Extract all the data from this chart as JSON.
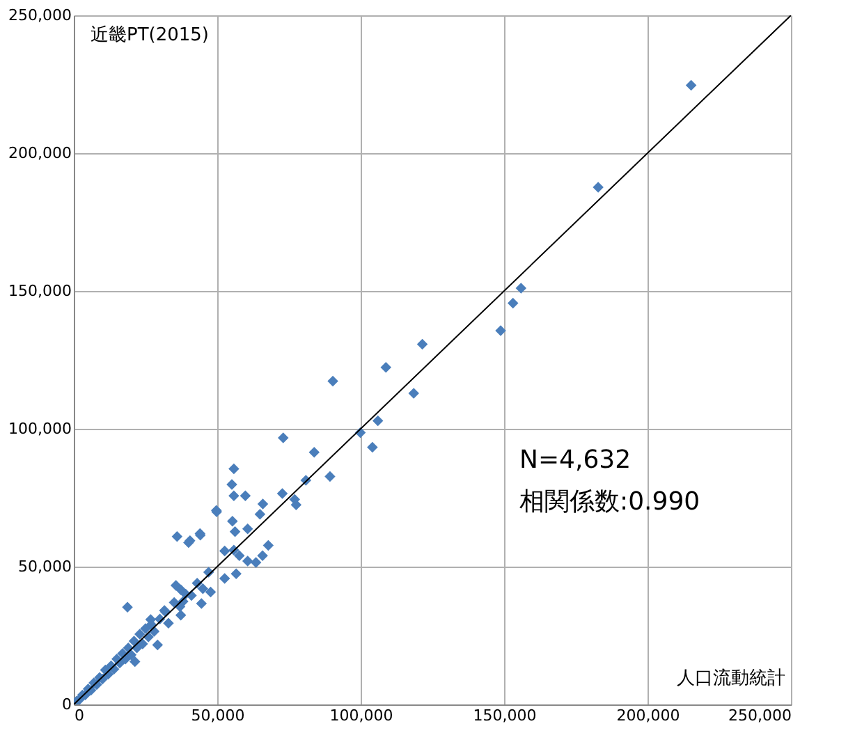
{
  "chart_data": {
    "type": "scatter",
    "xlabel": "人口流動統計",
    "ylabel": "近畿PT(2015)",
    "annotations": [
      "N=4,632",
      "相関係数:0.990"
    ],
    "xlim": [
      0,
      250000
    ],
    "ylim": [
      0,
      250000
    ],
    "xticks": [
      {
        "value": 0,
        "label": "0"
      },
      {
        "value": 50000,
        "label": "50,000"
      },
      {
        "value": 100000,
        "label": "100,000"
      },
      {
        "value": 150000,
        "label": "150,000"
      },
      {
        "value": 200000,
        "label": "200,000"
      },
      {
        "value": 250000,
        "label": "250,000"
      }
    ],
    "yticks": [
      {
        "value": 0,
        "label": "0"
      },
      {
        "value": 50000,
        "label": "50,000"
      },
      {
        "value": 100000,
        "label": "100,000"
      },
      {
        "value": 150000,
        "label": "150,000"
      },
      {
        "value": 200000,
        "label": "200,000"
      },
      {
        "value": 250000,
        "label": "250,000"
      }
    ],
    "grid": true,
    "series": [
      {
        "marker": "diamond",
        "color": "#4a7ebb",
        "x": [
          215200,
          182800,
          155900,
          153100,
          148800,
          121500,
          108800,
          118500,
          106000,
          99900,
          104100,
          90300,
          73000,
          83800,
          89300,
          55800,
          55100,
          55800,
          59800,
          49700,
          80900,
          72700,
          77000,
          77500,
          65900,
          64900,
          55300,
          60600,
          56200,
          44100,
          40500,
          67800,
          65800,
          63500,
          52600,
          55800,
          60600,
          57700,
          18700,
          36000,
          40000,
          44000,
          49800,
          35600,
          37300,
          38100,
          37300,
          44500,
          47700,
          52600,
          56600,
          29200,
          26800,
          31600,
          21300,
          1000,
          2000,
          3000,
          4000,
          5000,
          6000,
          7000,
          8000,
          9000,
          10000,
          11000,
          12000,
          13000,
          14000,
          15000,
          16000,
          17000,
          18000,
          19000,
          20000,
          21000,
          22000,
          23000,
          24000,
          25000,
          26000,
          27000,
          28000,
          30000,
          32000,
          33000,
          35000,
          37000,
          39000,
          41000,
          43000,
          45000,
          47000
        ],
        "values": [
          224600,
          187600,
          151000,
          145600,
          135600,
          130700,
          122300,
          112900,
          102900,
          98600,
          93300,
          117300,
          96700,
          91500,
          82700,
          85500,
          79800,
          75700,
          75700,
          70400,
          81300,
          76500,
          74400,
          72400,
          72700,
          69000,
          66500,
          63700,
          62700,
          61400,
          59400,
          57700,
          54000,
          51500,
          55700,
          56000,
          52000,
          54000,
          35300,
          60900,
          58700,
          62000,
          69900,
          43200,
          41600,
          37400,
          32400,
          36600,
          40800,
          45700,
          47400,
          21600,
          30800,
          34100,
          15500,
          1200,
          1800,
          3400,
          3500,
          5600,
          5200,
          7800,
          7200,
          9800,
          9200,
          12500,
          11000,
          14000,
          12800,
          16500,
          15000,
          18500,
          16500,
          20500,
          18000,
          23000,
          20500,
          25500,
          22000,
          27500,
          24500,
          29000,
          26500,
          31000,
          33500,
          29500,
          37000,
          35500,
          40000,
          39500,
          44000,
          42000,
          48000
        ]
      },
      {
        "type": "line",
        "marker": "none",
        "line_style": "solid",
        "color": "#000000",
        "x": [
          0,
          250000
        ],
        "values": [
          0,
          250000
        ]
      }
    ]
  }
}
